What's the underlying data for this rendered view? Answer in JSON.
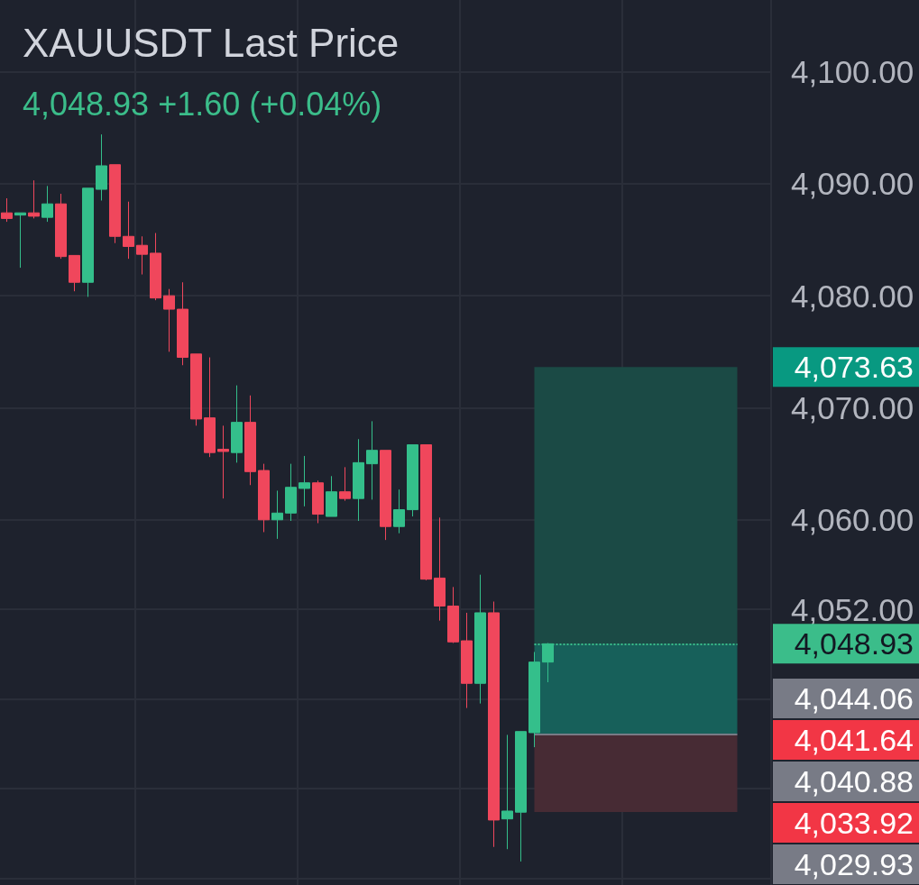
{
  "chart_data": {
    "type": "candlestick",
    "title": "XAUUSDT Last Price",
    "subtitle": "4,048.93 +1.60 (+0.04%)",
    "categories": [
      null,
      null,
      null,
      null,
      null,
      null,
      null,
      null,
      null,
      null,
      null,
      null,
      null,
      null,
      null,
      null,
      null,
      null,
      null,
      null,
      null,
      null,
      null,
      null,
      null,
      null,
      null,
      null,
      null,
      null,
      null,
      null,
      null,
      null,
      null,
      null,
      null,
      null,
      null,
      null,
      null,
      null,
      null,
      null,
      null,
      null,
      null,
      null,
      null,
      null,
      null,
      null,
      null,
      null,
      null,
      null,
      null
    ],
    "ohlc": [
      [
        4087.4,
        4088.7,
        4086.6,
        4086.9
      ],
      [
        4087.2,
        4087.4,
        4082.5,
        4087.4
      ],
      [
        4087.4,
        4090.3,
        4086.9,
        4087.1
      ],
      [
        4087.0,
        4089.8,
        4086.6,
        4088.2
      ],
      [
        4088.2,
        4089.1,
        4083.3,
        4083.5
      ],
      [
        4083.6,
        4083.6,
        4080.4,
        4081.2
      ],
      [
        4081.2,
        4089.6,
        4079.9,
        4089.6
      ],
      [
        4089.5,
        4094.4,
        4088.5,
        4091.6
      ],
      [
        4091.7,
        4091.7,
        4084.7,
        4085.3
      ],
      [
        4085.3,
        4088.4,
        4083.3,
        4084.4
      ],
      [
        4084.5,
        4085.3,
        4081.9,
        4083.7
      ],
      [
        4083.8,
        4085.6,
        4079.6,
        4079.8
      ],
      [
        4080.0,
        4080.6,
        4075.0,
        4078.8
      ],
      [
        4078.8,
        4081.2,
        4073.8,
        4074.5
      ],
      [
        4074.8,
        4074.8,
        4068.4,
        4069.0
      ],
      [
        4069.1,
        4074.5,
        4065.6,
        4066.0
      ],
      [
        4066.3,
        4068.4,
        4061.9,
        4066.1
      ],
      [
        4066.0,
        4072.0,
        4065.1,
        4068.7
      ],
      [
        4068.7,
        4071.1,
        4063.1,
        4064.3
      ],
      [
        4064.4,
        4065.0,
        4058.9,
        4060.0
      ],
      [
        4060.0,
        4062.6,
        4058.3,
        4060.6
      ],
      [
        4060.6,
        4065.0,
        4059.9,
        4062.9
      ],
      [
        4062.8,
        4065.7,
        4061.2,
        4063.3
      ],
      [
        4063.3,
        4063.5,
        4059.7,
        4060.5
      ],
      [
        4060.3,
        4063.9,
        4060.3,
        4062.5
      ],
      [
        4062.5,
        4064.7,
        4061.7,
        4061.9
      ],
      [
        4061.9,
        4067.2,
        4059.9,
        4065.1
      ],
      [
        4065.0,
        4068.8,
        4061.8,
        4066.2
      ],
      [
        4066.2,
        4066.2,
        4058.2,
        4059.4
      ],
      [
        4059.4,
        4062.7,
        4058.8,
        4060.9
      ],
      [
        4060.9,
        4066.7,
        4060.3,
        4066.7
      ],
      [
        4066.7,
        4066.7,
        4054.6,
        4054.7
      ],
      [
        4054.8,
        4060.2,
        4051.0,
        4052.3
      ],
      [
        4052.3,
        4054.0,
        4049.0,
        4049.1
      ],
      [
        4049.2,
        4051.7,
        4043.2,
        4045.4
      ],
      [
        4045.4,
        4055.1,
        4043.6,
        4051.7
      ],
      [
        4051.7,
        4052.7,
        4030.8,
        4033.2
      ],
      [
        4033.3,
        4040.8,
        4030.6,
        4034.0
      ],
      [
        4033.9,
        4041.1,
        4029.5,
        4041.1
      ],
      [
        4041.0,
        4048.2,
        4039.7,
        4047.3
      ],
      [
        4047.3,
        4049.0,
        4045.5,
        4048.93
      ],
      null,
      null,
      null,
      null,
      null,
      null,
      null,
      null,
      null,
      null,
      null,
      null,
      null,
      null,
      null,
      null
    ],
    "colors": [
      "#f0475c",
      "#34bf8b",
      "#f0475c",
      "#34bf8b",
      "#f0475c",
      "#f0475c",
      "#34bf8b",
      "#34bf8b",
      "#f0475c",
      "#f0475c",
      "#f0475c",
      "#f0475c",
      "#f0475c",
      "#f0475c",
      "#f0475c",
      "#f0475c",
      "#f0475c",
      "#34bf8b",
      "#f0475c",
      "#f0475c",
      "#34bf8b",
      "#34bf8b",
      "#34bf8b",
      "#f0475c",
      "#34bf8b",
      "#f0475c",
      "#34bf8b",
      "#34bf8b",
      "#f0475c",
      "#34bf8b",
      "#34bf8b",
      "#f0475c",
      "#f0475c",
      "#f0475c",
      "#f0475c",
      "#34bf8b",
      "#f0475c",
      "#34bf8b",
      "#34bf8b",
      "#34bf8b",
      "#34bf8b",
      null,
      null,
      null,
      null,
      null,
      null,
      null,
      null,
      null,
      null,
      null,
      null,
      null,
      null,
      null,
      null
    ],
    "ylim": [
      4027.4,
      4106.4
    ],
    "yticks": [
      {
        "value": 4100,
        "label": "4,100.00"
      },
      {
        "value": 4090,
        "label": "4,090.00"
      },
      {
        "value": 4080,
        "label": "4,080.00"
      },
      {
        "value": 4070,
        "label": "4,070.00"
      },
      {
        "value": 4060,
        "label": "4,060.00"
      },
      {
        "value": 4052,
        "label": "4,052.00"
      },
      {
        "value": 4044,
        "label": null
      },
      {
        "value": 4036,
        "label": null
      },
      {
        "value": 4028,
        "label": null
      }
    ],
    "grid": true,
    "tick_labels": "y",
    "ref_lines": [
      {
        "axis": "y",
        "value": 4048.93,
        "label": "4,048.93",
        "color": "#3bbd8a",
        "line_style": "dotted"
      },
      {
        "axis": "y",
        "value": 4040.88,
        "label": "4,040.88",
        "color": "#787b86",
        "line_style": "solid"
      }
    ],
    "annotations": [
      "4,073.63",
      "4,044.06",
      "4,041.64",
      "4,033.92",
      "4,029.93"
    ],
    "bands": [
      {
        "axis": "y",
        "from": 4048.93,
        "to": 4073.63,
        "color": "#1b4a45"
      },
      {
        "axis": "y",
        "from": 4040.88,
        "to": 4048.93,
        "color": "#17605a"
      },
      {
        "axis": "y",
        "from": 4033.92,
        "to": 4040.88,
        "color": "#472b34"
      }
    ]
  }
}
